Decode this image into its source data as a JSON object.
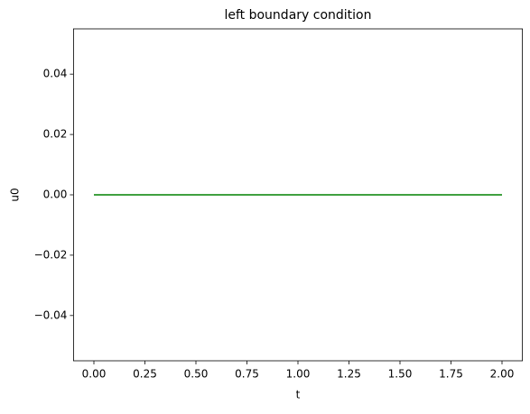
{
  "chart_data": {
    "type": "line",
    "title": "left boundary condition",
    "x_label": "t",
    "y_label": "u0",
    "x": [
      0,
      2
    ],
    "series": [
      {
        "color": "#008000",
        "values": [
          0,
          0
        ]
      }
    ],
    "xlim": [
      -0.1,
      2.1
    ],
    "xticks": [
      {
        "value": 0,
        "label": "0.00"
      },
      {
        "value": 0.25,
        "label": "0.25"
      },
      {
        "value": 0.5,
        "label": "0.50"
      },
      {
        "value": 0.75,
        "label": "0.75"
      },
      {
        "value": 1,
        "label": "1.00"
      },
      {
        "value": 1.25,
        "label": "1.25"
      },
      {
        "value": 1.5,
        "label": "1.50"
      },
      {
        "value": 1.75,
        "label": "1.75"
      },
      {
        "value": 2,
        "label": "2.00"
      }
    ],
    "ylim": [
      -0.055,
      0.055
    ],
    "yticks": [
      {
        "value": -0.04,
        "label": "−0.04"
      },
      {
        "value": -0.02,
        "label": "−0.02"
      },
      {
        "value": 0,
        "label": "0.00"
      },
      {
        "value": 0.02,
        "label": "0.02"
      },
      {
        "value": 0.04,
        "label": "0.04"
      }
    ]
  }
}
